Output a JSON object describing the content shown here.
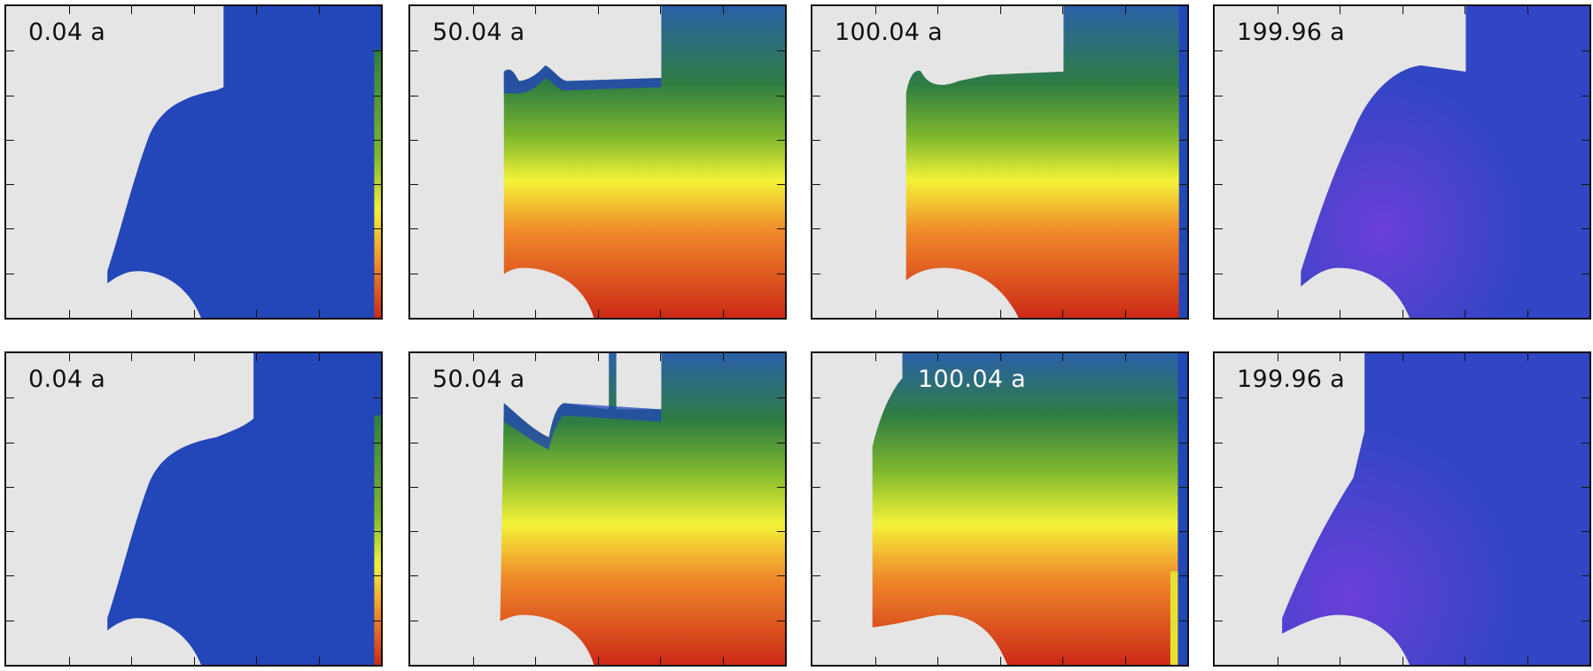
{
  "chart_data": {
    "type": "heatmap",
    "layout": "2 rows x 4 columns of snapshot panels",
    "colormap": [
      "#2346b8",
      "#2f7d42",
      "#7fb82d",
      "#f4f238",
      "#f08a2a",
      "#cc2a16"
    ],
    "mask_color": "#e5e5e5",
    "axes_tick_labels": "none shown",
    "rows": [
      {
        "panels": [
          {
            "label": "0.04 a",
            "state": "uniform-blue",
            "light_label": false
          },
          {
            "label": "50.04 a",
            "state": "gradient",
            "light_label": false
          },
          {
            "label": "100.04 a",
            "state": "gradient",
            "light_label": false
          },
          {
            "label": "199.96 a",
            "state": "uniform-blue-purple",
            "light_label": false
          }
        ]
      },
      {
        "panels": [
          {
            "label": "0.04 a",
            "state": "uniform-blue",
            "light_label": false
          },
          {
            "label": "50.04 a",
            "state": "gradient",
            "light_label": false
          },
          {
            "label": "100.04 a",
            "state": "gradient",
            "light_label": true
          },
          {
            "label": "199.96 a",
            "state": "uniform-blue-purple",
            "light_label": false
          }
        ]
      }
    ]
  }
}
